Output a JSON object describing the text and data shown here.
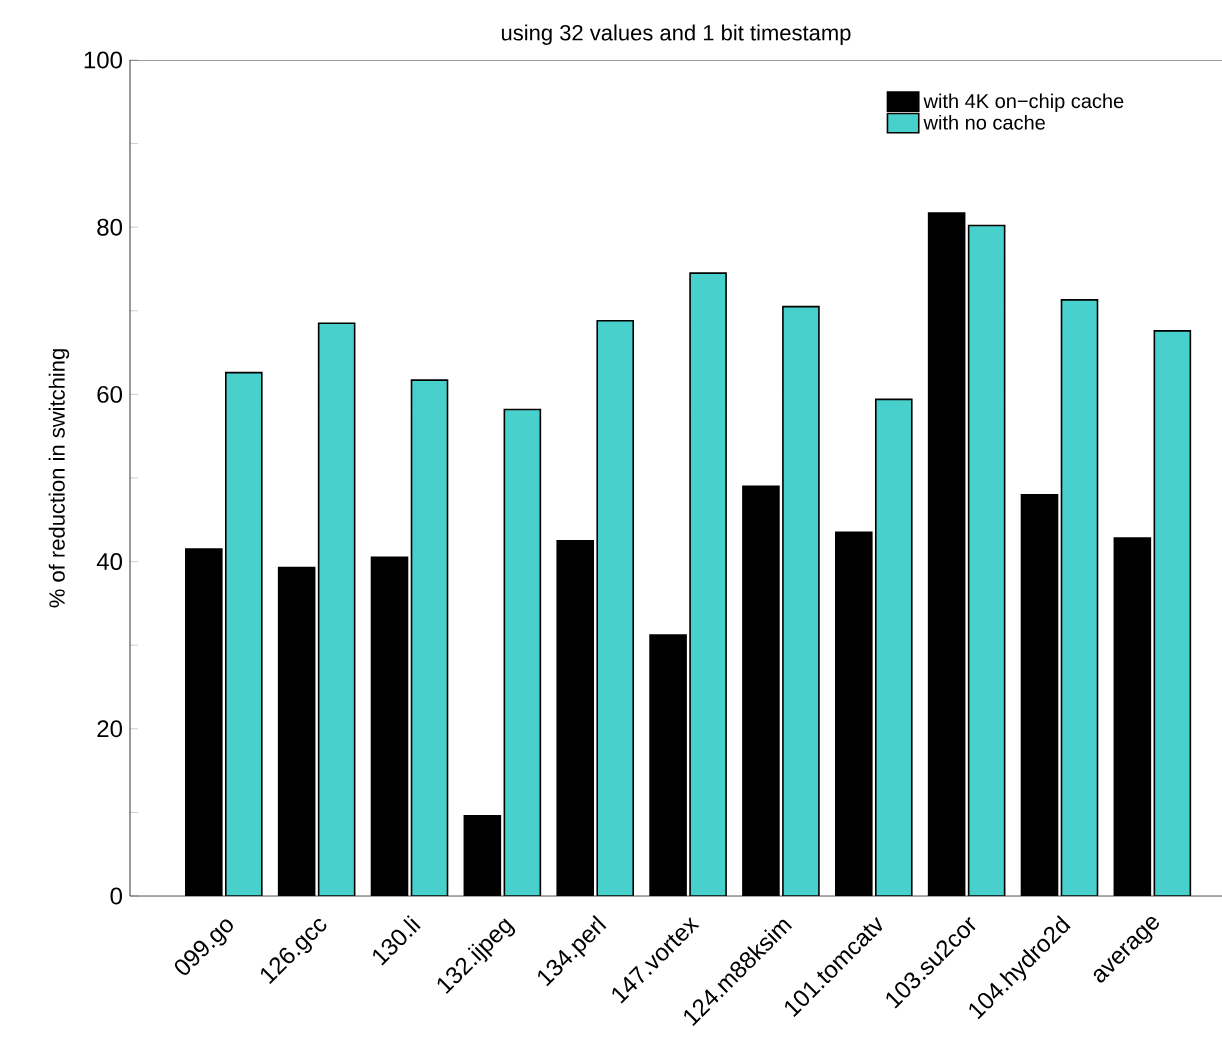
{
  "chart_data": {
    "type": "bar",
    "title": "using 32 values and 1 bit timestamp",
    "ylabel": "% of reduction in switching",
    "categories": [
      "099.go",
      "126.gcc",
      "130.li",
      "132.ijpeg",
      "134.perl",
      "147.vortex",
      "124.m88ksim",
      "101.tomcatv",
      "103.su2cor",
      "104.hydro2d",
      "average"
    ],
    "series": [
      {
        "name": "with 4K on−chip cache",
        "color": "#000000",
        "values": [
          41.5,
          39.3,
          40.5,
          9.6,
          42.5,
          31.2,
          49,
          43.5,
          81.7,
          48,
          42.8
        ]
      },
      {
        "name": "with no cache",
        "color": "#48d1cc",
        "values": [
          62.6,
          68.5,
          61.7,
          58.2,
          68.8,
          74.5,
          70.5,
          59.4,
          80.2,
          71.3,
          67.6
        ]
      }
    ],
    "ylim": [
      0,
      100
    ],
    "yticks": [
      0,
      {
        "value": 10,
        "label": null
      },
      20,
      {
        "value": 30,
        "label": null
      },
      40,
      {
        "value": 50,
        "label": null
      },
      60,
      {
        "value": 70,
        "label": null
      },
      80,
      {
        "value": 90,
        "label": null
      },
      100
    ],
    "grid": false,
    "legend": "top right"
  }
}
